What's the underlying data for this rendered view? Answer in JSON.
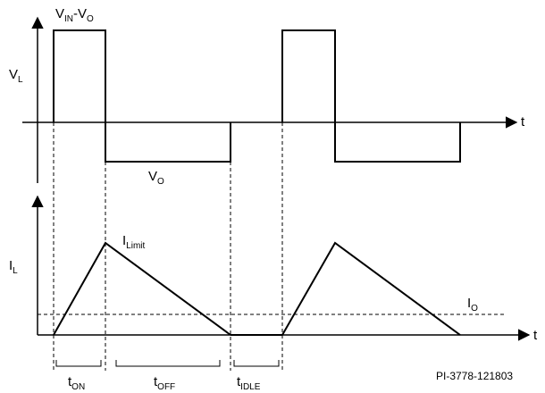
{
  "labels": {
    "vin_minus_vo": {
      "main": "V",
      "sub1": "IN",
      "mid": "-V",
      "sub2": "O"
    },
    "vl": {
      "main": "V",
      "sub": "L"
    },
    "vo": {
      "main": "V",
      "sub": "O"
    },
    "ilimit": {
      "main": "I",
      "sub": "Limit"
    },
    "il": {
      "main": "I",
      "sub": "L"
    },
    "io": {
      "main": "I",
      "sub": "O"
    },
    "t_on": {
      "main": "t",
      "sub": "ON"
    },
    "t_off": {
      "main": "t",
      "sub": "OFF"
    },
    "t_idle": {
      "main": "t",
      "sub": "IDLE"
    },
    "t_axis_top": "t",
    "t_axis_bottom": "t"
  },
  "reference": "PI-3778-121803"
}
